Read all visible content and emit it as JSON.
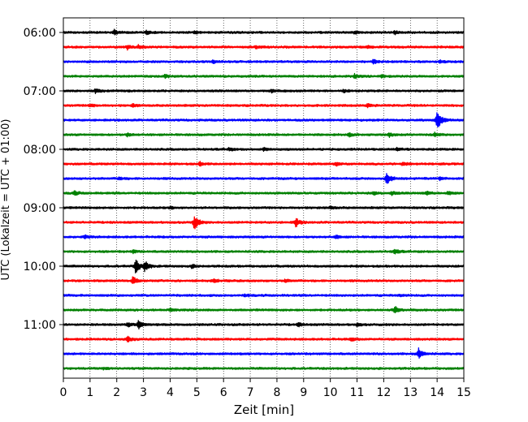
{
  "chart_data": {
    "type": "line",
    "xlabel": "Zeit  [min]",
    "ylabel": "UTC (Lokalzeit = UTC + 01:00)",
    "xlim": [
      0,
      15
    ],
    "x_ticks": [
      "0",
      "1",
      "2",
      "3",
      "4",
      "5",
      "6",
      "7",
      "8",
      "9",
      "10",
      "11",
      "12",
      "13",
      "14",
      "15"
    ],
    "y_tick_labels": [
      "06:00",
      "07:00",
      "08:00",
      "09:00",
      "10:00",
      "11:00"
    ],
    "grid": "vertical dotted",
    "colors": [
      "#000000",
      "#ff0000",
      "#0000ff",
      "#008000"
    ],
    "traces": [
      {
        "start": "06:00",
        "color": "#000000",
        "events": [
          {
            "t": 1.9,
            "amp": 0.7
          },
          {
            "t": 3.1,
            "amp": 0.5
          },
          {
            "t": 4.9,
            "amp": 0.4
          },
          {
            "t": 10.9,
            "amp": 0.4
          },
          {
            "t": 12.4,
            "amp": 0.5
          }
        ]
      },
      {
        "start": "06:15",
        "color": "#ff0000",
        "events": [
          {
            "t": 2.4,
            "amp": 0.6
          },
          {
            "t": 2.8,
            "amp": 0.5
          },
          {
            "t": 7.2,
            "amp": 0.4
          },
          {
            "t": 11.4,
            "amp": 0.4
          }
        ]
      },
      {
        "start": "06:30",
        "color": "#0000ff",
        "events": [
          {
            "t": 5.6,
            "amp": 0.4
          },
          {
            "t": 11.6,
            "amp": 0.6
          },
          {
            "t": 14.1,
            "amp": 0.4
          }
        ]
      },
      {
        "start": "06:45",
        "color": "#008000",
        "events": [
          {
            "t": 3.8,
            "amp": 0.4
          },
          {
            "t": 10.9,
            "amp": 0.6
          },
          {
            "t": 11.9,
            "amp": 0.4
          }
        ]
      },
      {
        "start": "07:00",
        "color": "#000000",
        "events": [
          {
            "t": 1.2,
            "amp": 0.5
          },
          {
            "t": 7.8,
            "amp": 0.4
          },
          {
            "t": 10.5,
            "amp": 0.4
          }
        ]
      },
      {
        "start": "07:15",
        "color": "#ff0000",
        "events": [
          {
            "t": 1.0,
            "amp": 0.4
          },
          {
            "t": 2.6,
            "amp": 0.4
          },
          {
            "t": 11.4,
            "amp": 0.5
          }
        ]
      },
      {
        "start": "07:30",
        "color": "#0000ff",
        "events": [
          {
            "t": 14.0,
            "amp": 3.5
          }
        ]
      },
      {
        "start": "07:45",
        "color": "#008000",
        "events": [
          {
            "t": 2.4,
            "amp": 0.5
          },
          {
            "t": 10.7,
            "amp": 0.5
          },
          {
            "t": 12.2,
            "amp": 0.6
          },
          {
            "t": 13.9,
            "amp": 0.6
          }
        ]
      },
      {
        "start": "08:00",
        "color": "#000000",
        "events": [
          {
            "t": 6.2,
            "amp": 0.4
          },
          {
            "t": 7.5,
            "amp": 0.4
          },
          {
            "t": 12.5,
            "amp": 0.4
          }
        ]
      },
      {
        "start": "08:15",
        "color": "#ff0000",
        "events": [
          {
            "t": 5.1,
            "amp": 0.5
          },
          {
            "t": 10.2,
            "amp": 0.5
          },
          {
            "t": 12.7,
            "amp": 0.5
          }
        ]
      },
      {
        "start": "08:30",
        "color": "#0000ff",
        "events": [
          {
            "t": 2.1,
            "amp": 0.4
          },
          {
            "t": 12.1,
            "amp": 1.8
          },
          {
            "t": 14.1,
            "amp": 0.4
          }
        ]
      },
      {
        "start": "08:45",
        "color": "#008000",
        "events": [
          {
            "t": 0.4,
            "amp": 0.6
          },
          {
            "t": 11.6,
            "amp": 0.5
          },
          {
            "t": 12.3,
            "amp": 0.5
          },
          {
            "t": 13.6,
            "amp": 0.5
          },
          {
            "t": 14.4,
            "amp": 0.5
          }
        ]
      },
      {
        "start": "09:00",
        "color": "#000000",
        "events": [
          {
            "t": 4.0,
            "amp": 0.3
          },
          {
            "t": 10.0,
            "amp": 0.4
          }
        ]
      },
      {
        "start": "09:15",
        "color": "#ff0000",
        "events": [
          {
            "t": 4.9,
            "amp": 2.2
          },
          {
            "t": 8.7,
            "amp": 1.4
          }
        ]
      },
      {
        "start": "09:30",
        "color": "#0000ff",
        "events": [
          {
            "t": 0.8,
            "amp": 0.4
          },
          {
            "t": 10.2,
            "amp": 0.4
          }
        ]
      },
      {
        "start": "09:45",
        "color": "#008000",
        "events": [
          {
            "t": 2.6,
            "amp": 0.4
          },
          {
            "t": 12.4,
            "amp": 0.8
          }
        ]
      },
      {
        "start": "10:00",
        "color": "#000000",
        "events": [
          {
            "t": 2.7,
            "amp": 2.2
          },
          {
            "t": 3.05,
            "amp": 1.5
          },
          {
            "t": 4.8,
            "amp": 0.5
          }
        ]
      },
      {
        "start": "10:15",
        "color": "#ff0000",
        "events": [
          {
            "t": 2.6,
            "amp": 1.2
          },
          {
            "t": 5.6,
            "amp": 0.5
          },
          {
            "t": 8.3,
            "amp": 0.4
          }
        ]
      },
      {
        "start": "10:30",
        "color": "#0000ff",
        "events": [
          {
            "t": 6.8,
            "amp": 0.3
          },
          {
            "t": 12.6,
            "amp": 0.3
          }
        ]
      },
      {
        "start": "10:45",
        "color": "#008000",
        "events": [
          {
            "t": 4.0,
            "amp": 0.5
          },
          {
            "t": 12.4,
            "amp": 1.2
          }
        ]
      },
      {
        "start": "11:00",
        "color": "#000000",
        "events": [
          {
            "t": 2.4,
            "amp": 0.6
          },
          {
            "t": 2.8,
            "amp": 1.3
          },
          {
            "t": 8.8,
            "amp": 0.5
          },
          {
            "t": 11.0,
            "amp": 0.4
          }
        ]
      },
      {
        "start": "11:15",
        "color": "#ff0000",
        "events": [
          {
            "t": 2.4,
            "amp": 0.8
          },
          {
            "t": 10.8,
            "amp": 0.5
          }
        ]
      },
      {
        "start": "11:30",
        "color": "#0000ff",
        "events": [
          {
            "t": 13.3,
            "amp": 1.6
          }
        ]
      },
      {
        "start": "11:45",
        "color": "#008000",
        "events": [
          {
            "t": 1.5,
            "amp": 0.3
          }
        ]
      }
    ]
  }
}
